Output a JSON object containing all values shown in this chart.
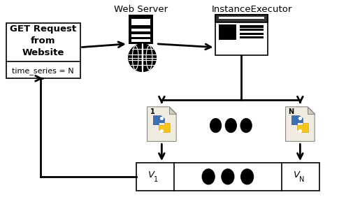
{
  "background_color": "#ffffff",
  "web_server_label": "Web Server",
  "instance_executor_label": "InstanceExecutor",
  "get_request_text": "GET Request\nfrom\nWebsite",
  "time_series_text": "time_series = N",
  "v1_text": "V",
  "v1_sub": "1",
  "vn_text": "V",
  "vn_sub": "N",
  "num_label_1": "1",
  "num_label_N": "N",
  "font_size": 9,
  "label_fontsize": 9.5
}
